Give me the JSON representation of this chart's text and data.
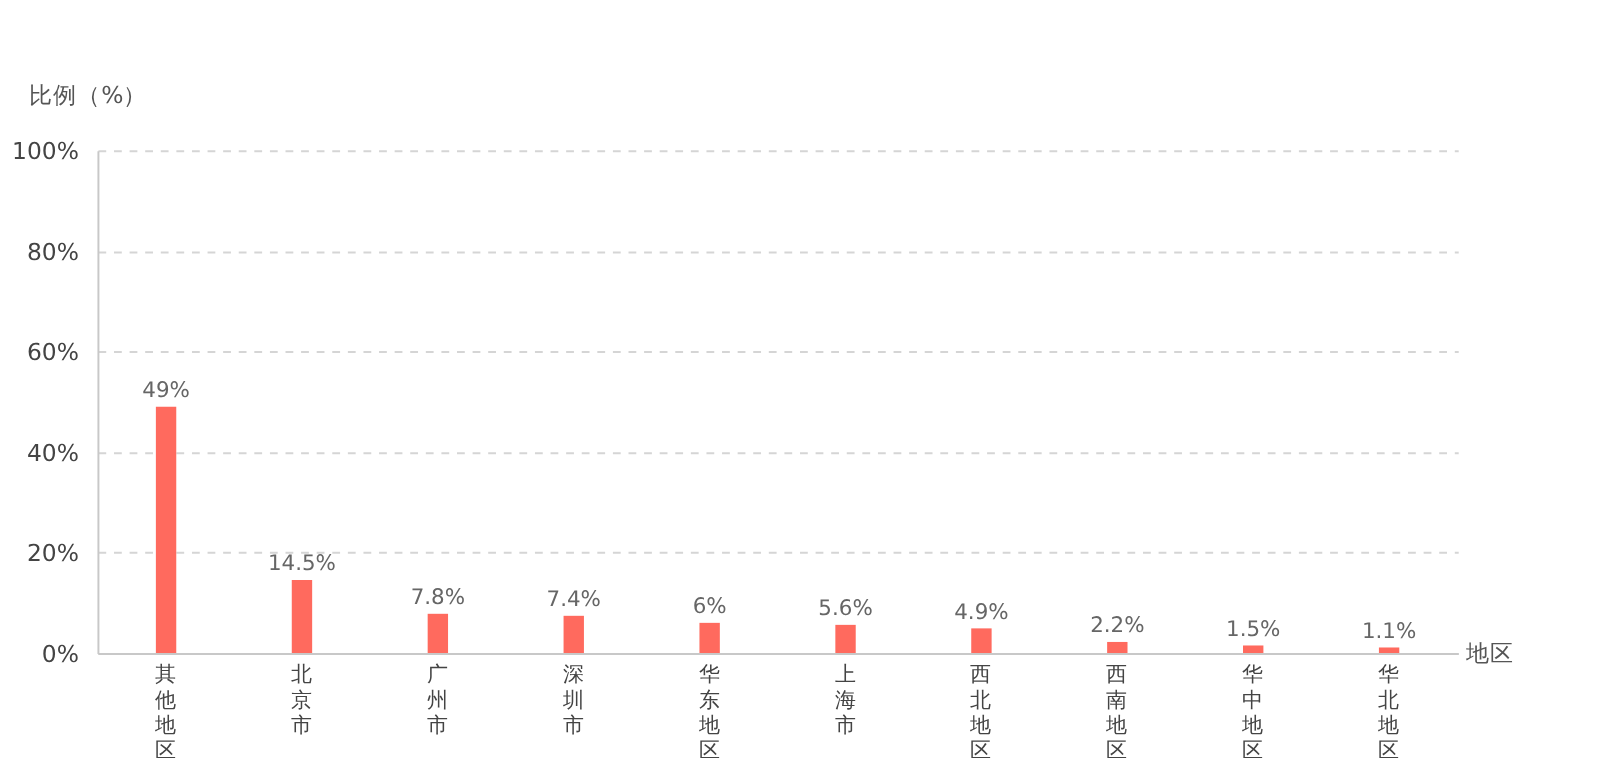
{
  "chart_data": {
    "type": "bar",
    "xlabel": "地区",
    "ylabel": "比例（%）",
    "categories": [
      "其他地区",
      "北京市",
      "广州市",
      "深圳市",
      "华东地区",
      "上海市",
      "西北地区",
      "西南地区",
      "华中地区",
      "华北地区"
    ],
    "values": [
      49,
      14.5,
      7.8,
      7.4,
      6,
      5.6,
      4.9,
      2.2,
      1.5,
      1.1
    ],
    "value_labels": [
      "49%",
      "14.5%",
      "7.8%",
      "7.4%",
      "6%",
      "5.6%",
      "4.9%",
      "2.2%",
      "1.5%",
      "1.1%"
    ],
    "color": "#ff6a5e",
    "ylim": [
      0,
      100
    ],
    "yticks": [
      {
        "value": 0,
        "label": "0%"
      },
      {
        "value": 20,
        "label": "20%"
      },
      {
        "value": 40,
        "label": "40%"
      },
      {
        "value": 60,
        "label": "60%"
      },
      {
        "value": 80,
        "label": "80%"
      },
      {
        "value": 100,
        "label": "100%"
      }
    ],
    "grid": "y"
  }
}
